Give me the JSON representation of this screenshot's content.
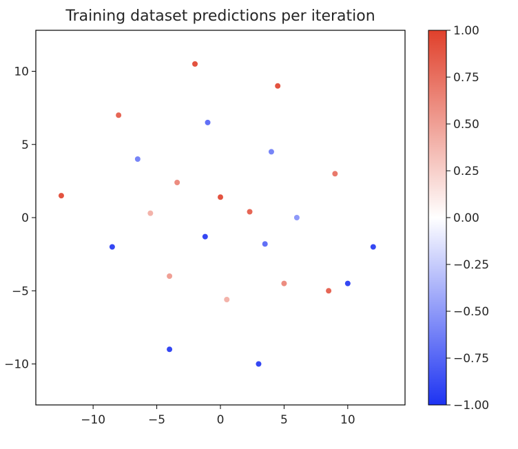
{
  "chart_data": {
    "type": "scatter",
    "title": "Training dataset predictions per iteration",
    "xlabel": "",
    "ylabel": "",
    "xlim": [
      -14.5,
      14.5
    ],
    "ylim": [
      -12.8,
      12.8
    ],
    "xticks": [
      -10,
      -5,
      0,
      5,
      10
    ],
    "yticks": [
      -10,
      -5,
      0,
      5,
      10
    ],
    "xtick_labels": [
      "−10",
      "−5",
      "0",
      "5",
      "10"
    ],
    "ytick_labels": [
      "−10",
      "−5",
      "0",
      "5",
      "10"
    ],
    "grid": false,
    "legend": "none",
    "colorbar": {
      "colormap": "coolwarm-like (blue-white-red)",
      "range": [
        -1.0,
        1.0
      ],
      "ticks": [
        1.0,
        0.75,
        0.5,
        0.25,
        0.0,
        -0.25,
        -0.5,
        -0.75,
        -1.0
      ],
      "tick_labels": [
        "1.00",
        "0.75",
        "0.50",
        "0.25",
        "0.00",
        "−0.25",
        "−0.50",
        "−0.75",
        "−1.00"
      ],
      "color_min": "#1d33f2",
      "color_mid": "#ffffff",
      "color_max": "#e0402b"
    },
    "points": [
      {
        "x": 0.0,
        "y": 1.4,
        "v": 0.9
      },
      {
        "x": -1.2,
        "y": -1.3,
        "v": -0.9
      },
      {
        "x": 2.3,
        "y": 0.4,
        "v": 0.8
      },
      {
        "x": 3.5,
        "y": -1.8,
        "v": -0.7
      },
      {
        "x": -3.4,
        "y": 2.4,
        "v": 0.6
      },
      {
        "x": -5.5,
        "y": 0.3,
        "v": 0.4
      },
      {
        "x": -4.0,
        "y": -4.0,
        "v": 0.5
      },
      {
        "x": 0.5,
        "y": -5.6,
        "v": 0.4
      },
      {
        "x": 5.0,
        "y": -4.5,
        "v": 0.6
      },
      {
        "x": 6.0,
        "y": 0.0,
        "v": -0.5
      },
      {
        "x": 4.0,
        "y": 4.5,
        "v": -0.6
      },
      {
        "x": -1.0,
        "y": 6.5,
        "v": -0.7
      },
      {
        "x": -6.5,
        "y": 4.0,
        "v": -0.6
      },
      {
        "x": -8.5,
        "y": -2.0,
        "v": -0.9
      },
      {
        "x": -4.0,
        "y": -9.0,
        "v": -0.9
      },
      {
        "x": 3.0,
        "y": -10.0,
        "v": -0.9
      },
      {
        "x": 8.5,
        "y": -5.0,
        "v": 0.8
      },
      {
        "x": 9.0,
        "y": 3.0,
        "v": 0.7
      },
      {
        "x": 4.5,
        "y": 9.0,
        "v": 0.9
      },
      {
        "x": -2.0,
        "y": 10.5,
        "v": 0.9
      },
      {
        "x": -8.0,
        "y": 7.0,
        "v": 0.8
      },
      {
        "x": -12.5,
        "y": 1.5,
        "v": 0.9
      },
      {
        "x": 12.0,
        "y": -2.0,
        "v": -0.9
      },
      {
        "x": 10.0,
        "y": -4.5,
        "v": -0.9
      }
    ]
  }
}
